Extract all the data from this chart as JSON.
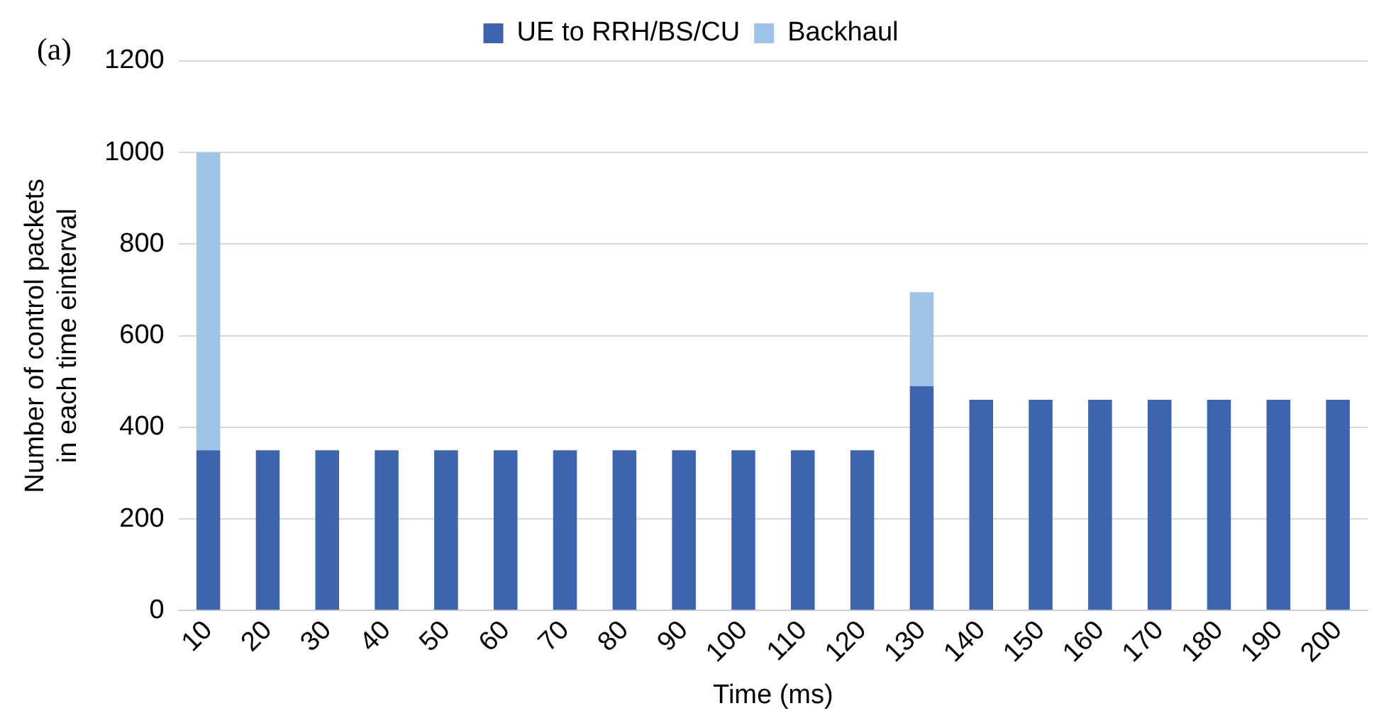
{
  "chart_data": {
    "type": "bar",
    "stacked": true,
    "xlabel": "Time (ms)",
    "ylabel": "Number of control packets\nin each time einterval",
    "annotations": [
      "(a)"
    ],
    "categories": [
      "10",
      "20",
      "30",
      "40",
      "50",
      "60",
      "70",
      "80",
      "90",
      "100",
      "110",
      "120",
      "130",
      "140",
      "150",
      "160",
      "170",
      "180",
      "190",
      "200"
    ],
    "series": [
      {
        "name": "UE to RRH/BS/CU",
        "color": "#3d64ad",
        "values": [
          350,
          350,
          350,
          350,
          350,
          350,
          350,
          350,
          350,
          350,
          350,
          350,
          490,
          460,
          460,
          460,
          460,
          460,
          460,
          460
        ]
      },
      {
        "name": "Backhaul",
        "color": "#9dc3e6",
        "values": [
          650,
          0,
          0,
          0,
          0,
          0,
          0,
          0,
          0,
          0,
          0,
          0,
          205,
          0,
          0,
          0,
          0,
          0,
          0,
          0
        ]
      }
    ],
    "ylim": [
      0,
      1200
    ],
    "yticks": [
      0,
      200,
      400,
      600,
      800,
      1000,
      1200
    ],
    "grid": "y",
    "legend": "top"
  }
}
